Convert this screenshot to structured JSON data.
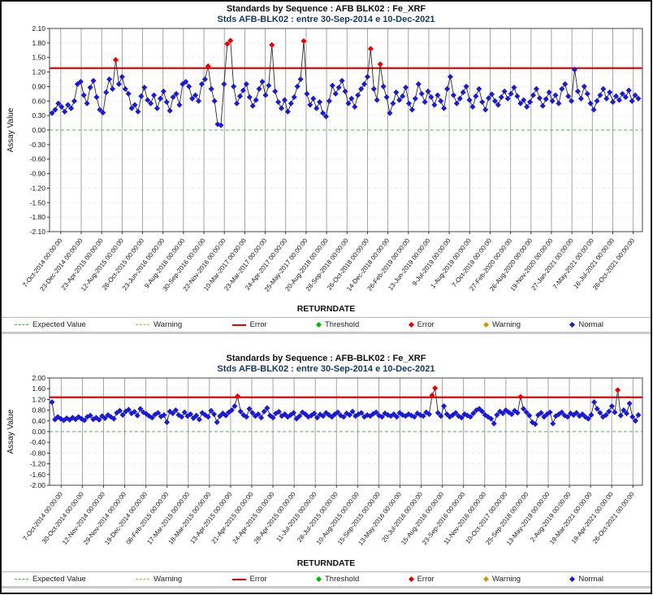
{
  "page": {
    "background": "#ffffff",
    "frame_border_color": "#141414",
    "grid_color": "#9a9a9a",
    "plot_border_color": "#444444"
  },
  "legend": {
    "items": [
      {
        "label": "Expected Value",
        "symbol": "dashed-line",
        "color": "#3faa3f"
      },
      {
        "label": "Warning",
        "symbol": "dashed-line",
        "color": "#c9a23c"
      },
      {
        "label": "Error",
        "symbol": "solid-line",
        "color": "#e60000"
      },
      {
        "label": "Threshold",
        "symbol": "diamond",
        "color": "#00bb00"
      },
      {
        "label": "Error",
        "symbol": "diamond",
        "color": "#e60000"
      },
      {
        "label": "Warning",
        "symbol": "diamond",
        "color": "#cc9900"
      },
      {
        "label": "Normal",
        "symbol": "diamond",
        "color": "#1a1ad6"
      }
    ]
  },
  "chart_data": [
    {
      "type": "line",
      "title": "Standards by Sequence : AFB BLK02 : Fe_XRF",
      "subtitle": "Stds AFB-BLK02 : entre 30-Sep-2014 e 10-Dec-2021",
      "xlabel": "RETURNDATE",
      "ylabel": "Assay Value",
      "ylim": [
        -2.1,
        2.1
      ],
      "yticks": [
        2.1,
        1.8,
        1.5,
        1.2,
        0.9,
        0.6,
        0.3,
        0.0,
        -0.3,
        -0.6,
        -0.9,
        -1.2,
        -1.5,
        -1.8,
        -2.1
      ],
      "error_line": 1.28,
      "expected_value": 0.0,
      "error_line_color": "#e60000",
      "expected_line_color": "#5daa5d",
      "point_color_normal": "#1a1ad6",
      "point_color_error": "#ee0000",
      "x_tick_labels": [
        "7-Oct-2014 00:00:00",
        "23-Dec-2014 00:00:00",
        "23-Apr-2015 00:00:00",
        "12-Aug-2015 00:00:00",
        "26-Oct-2015 00:00:00",
        "23-Jun-2016 00:00:00",
        "9-Aug-2016 00:00:00",
        "30-Sep-2016 00:00:00",
        "22-Nov-2016 00:00:00",
        "10-Mar-2017 00:00:00",
        "23-Mar-2017 00:00:00",
        "24-Apr-2017 00:00:00",
        "25-May-2017 00:00:00",
        "20-Aug-2018 00:00:00",
        "28-Sep-2018 00:00:00",
        "26-Oct-2018 00:00:00",
        "14-Dec-2018 00:00:00",
        "26-Feb-2019 00:00:00",
        "13-Jun-2019 00:00:00",
        "9-Jul-2019 00:00:00",
        "1-Aug-2019 00:00:00",
        "7-Oct-2019 00:00:00",
        "27-Feb-2020 00:00:00",
        "26-Aug-2020 00:00:00",
        "19-Nov-2020 00:00:00",
        "27-Jan-2021 00:00:00",
        "7-May-2021 00:00:00",
        "16-Jul-2021 00:00:00",
        "26-Oct-2021 00:00:00"
      ],
      "values": [
        0.35,
        0.42,
        0.55,
        0.48,
        0.38,
        0.52,
        0.45,
        0.6,
        0.95,
        1.0,
        0.72,
        0.55,
        0.88,
        1.02,
        0.68,
        0.42,
        0.36,
        0.78,
        1.05,
        0.85,
        1.45,
        0.95,
        1.1,
        0.85,
        0.75,
        0.45,
        0.52,
        0.38,
        0.7,
        0.88,
        0.62,
        0.55,
        0.72,
        0.45,
        0.65,
        0.8,
        0.58,
        0.4,
        0.68,
        0.75,
        0.52,
        0.95,
        1.0,
        0.9,
        0.65,
        0.72,
        0.6,
        0.95,
        1.05,
        1.32,
        0.85,
        0.6,
        0.12,
        0.1,
        0.95,
        1.78,
        1.85,
        0.9,
        0.55,
        0.7,
        0.82,
        0.95,
        0.68,
        0.5,
        0.62,
        0.85,
        1.0,
        0.72,
        0.92,
        1.76,
        0.8,
        0.58,
        0.45,
        0.62,
        0.38,
        0.55,
        0.68,
        0.9,
        1.05,
        1.84,
        0.75,
        0.52,
        0.65,
        0.45,
        0.58,
        0.35,
        0.28,
        0.6,
        0.92,
        0.75,
        0.88,
        1.02,
        0.8,
        0.55,
        0.65,
        0.48,
        0.72,
        0.85,
        0.95,
        1.1,
        1.68,
        0.85,
        0.62,
        1.36,
        0.9,
        0.68,
        0.35,
        0.55,
        0.78,
        0.62,
        0.7,
        0.88,
        0.55,
        0.42,
        0.65,
        0.95,
        0.75,
        0.58,
        0.8,
        0.68,
        0.52,
        0.72,
        0.6,
        0.45,
        0.85,
        1.1,
        0.72,
        0.55,
        0.65,
        0.78,
        0.9,
        0.62,
        0.48,
        0.7,
        0.85,
        0.58,
        0.42,
        0.66,
        0.74,
        0.6,
        0.52,
        0.68,
        0.8,
        0.65,
        0.75,
        0.88,
        0.7,
        0.55,
        0.62,
        0.48,
        0.58,
        0.72,
        0.85,
        0.66,
        0.5,
        0.64,
        0.78,
        0.6,
        0.72,
        0.55,
        0.85,
        0.95,
        0.7,
        0.6,
        1.25,
        0.8,
        0.65,
        0.9,
        0.75,
        0.55,
        0.42,
        0.6,
        0.72,
        0.85,
        0.65,
        0.78,
        0.58,
        0.7,
        0.62,
        0.75,
        0.68,
        0.82,
        0.6,
        0.72,
        0.65
      ]
    },
    {
      "type": "line",
      "title": "Standards by Sequence : AFB-BLK02 : Fe_XRF",
      "subtitle": "Stds AFB-BLK02 : entre 30-Sep-2014 e 10-Dec-2021",
      "xlabel": "RETURNDATE",
      "ylabel": "Assay Value",
      "ylim": [
        -2.0,
        2.0
      ],
      "yticks": [
        2.0,
        1.6,
        1.2,
        0.8,
        0.4,
        0.0,
        -0.4,
        -0.8,
        -1.2,
        -1.6,
        -2.0
      ],
      "error_line": 1.28,
      "expected_value": 0.0,
      "error_line_color": "#e60000",
      "expected_line_color": "#5daa5d",
      "point_color_normal": "#1a1ad6",
      "point_color_error": "#ee0000",
      "x_tick_labels": [
        "7-Oct-2014 00:00:00",
        "30-Oct-2014 00:00:00",
        "12-Nov-2014 00:00:00",
        "29-Nov-2014 00:00:00",
        "19-Dec-2014 00:00:00",
        "06-Feb-2015 00:00:00",
        "17-Mar-2015 00:00:00",
        "18-Mar-2015 00:00:00",
        "13-Apr-2015 00:00:00",
        "21-Apr-2015 00:00:00",
        "24-Apr-2015 00:00:00",
        "28-Apr-2015 00:00:00",
        "11-Jul-2015 00:00:00",
        "28-Jul-2015 00:00:00",
        "10-Aug-2015 00:00:00",
        "15-Sep-2015 00:00:00",
        "13-May-2016 00:00:00",
        "20-Jul-2016 00:00:00",
        "15-Aug-2016 00:00:00",
        "23-Sep-2016 00:00:00",
        "11-Nov-2016 00:00:00",
        "10-Oct-2017 00:00:00",
        "25-Sep-2018 00:00:00",
        "13-May-2019 00:00:00",
        "2-Aug-2019 00:00:00",
        "19-Mar-2021 00:00:00",
        "19-Apr-2021 00:00:00",
        "26-Oct-2021 00:00:00"
      ],
      "values": [
        1.1,
        0.45,
        0.55,
        0.48,
        0.42,
        0.5,
        0.44,
        0.52,
        0.46,
        0.55,
        0.48,
        0.42,
        0.55,
        0.6,
        0.46,
        0.52,
        0.44,
        0.58,
        0.5,
        0.62,
        0.55,
        0.48,
        0.7,
        0.78,
        0.62,
        0.75,
        0.82,
        0.68,
        0.74,
        0.6,
        0.85,
        0.72,
        0.66,
        0.58,
        0.52,
        0.64,
        0.7,
        0.56,
        0.62,
        0.35,
        0.75,
        0.68,
        0.8,
        0.62,
        0.55,
        0.72,
        0.58,
        0.65,
        0.5,
        0.6,
        0.45,
        0.7,
        0.62,
        0.55,
        0.78,
        0.65,
        0.35,
        0.58,
        0.68,
        0.6,
        0.72,
        0.8,
        0.95,
        1.32,
        0.75,
        0.62,
        0.55,
        0.85,
        0.7,
        0.58,
        0.65,
        0.52,
        0.75,
        0.88,
        0.6,
        0.52,
        0.68,
        0.74,
        0.58,
        0.65,
        0.55,
        0.62,
        0.7,
        0.48,
        0.58,
        0.72,
        0.65,
        0.55,
        0.6,
        0.68,
        0.52,
        0.64,
        0.58,
        0.7,
        0.62,
        0.55,
        0.65,
        0.72,
        0.6,
        0.55,
        0.68,
        0.62,
        0.75,
        0.58,
        0.65,
        0.7,
        0.55,
        0.62,
        0.58,
        0.66,
        0.72,
        0.6,
        0.55,
        0.68,
        0.62,
        0.58,
        0.65,
        0.55,
        0.7,
        0.62,
        0.58,
        0.65,
        0.6,
        0.55,
        0.68,
        0.62,
        0.58,
        0.72,
        0.65,
        1.35,
        1.62,
        0.7,
        0.58,
        0.95,
        0.65,
        0.55,
        0.62,
        0.7,
        0.58,
        0.52,
        0.65,
        0.6,
        0.55,
        0.68,
        0.8,
        0.85,
        0.75,
        0.62,
        0.55,
        0.48,
        0.3,
        0.62,
        0.75,
        0.68,
        0.8,
        0.72,
        0.65,
        0.78,
        0.7,
        1.3,
        0.85,
        0.72,
        0.6,
        0.35,
        0.28,
        0.62,
        0.7,
        0.55,
        0.65,
        0.72,
        0.3,
        0.58,
        0.65,
        0.72,
        0.6,
        0.55,
        0.68,
        0.62,
        0.7,
        0.58,
        0.65,
        0.55,
        0.48,
        0.62,
        1.1,
        0.85,
        0.7,
        0.55,
        0.62,
        0.75,
        0.95,
        0.72,
        1.55,
        0.6,
        0.8,
        0.68,
        1.05,
        0.55,
        0.4,
        0.62
      ]
    }
  ]
}
